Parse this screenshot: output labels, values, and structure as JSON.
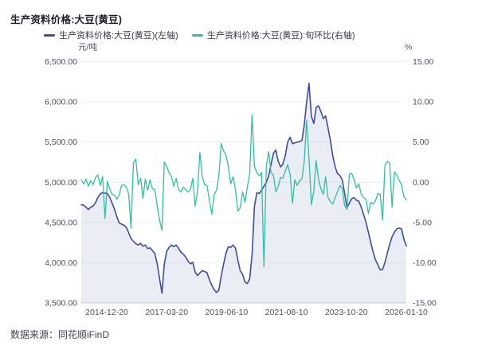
{
  "title": "生产资料价格:大豆(黄豆)",
  "source": "数据来源：同花顺iFinD",
  "legend": [
    {
      "label": "生产资料价格:大豆(黄豆)(左轴)",
      "color": "#3e4d9e"
    },
    {
      "label": "生产资料价格:大豆(黄豆):旬环比(右轴)",
      "color": "#2ec0a6"
    }
  ],
  "colors": {
    "price_line": "#3e4d9e",
    "price_area": "rgba(63,77,158,0.10)",
    "ratio_line": "#2ec0a6",
    "grid": "#eef0f4",
    "axis": "#c9ccd6",
    "tick_text": "#4a5064"
  },
  "left_axis": {
    "unit": "元/吨",
    "labels": [
      "6,500.00",
      "6,000.00",
      "5,500.00",
      "5,000.00",
      "4,500.00",
      "4,000.00",
      "3,500.00"
    ],
    "min": 3500,
    "max": 6500
  },
  "right_axis": {
    "unit": "%",
    "labels": [
      "15.00",
      "10.00",
      "5.00",
      "0.00",
      "-5.00",
      "-10.00",
      "-15.00"
    ],
    "min": -15,
    "max": 15
  },
  "x_axis": {
    "ticks": [
      "2014-12-20",
      "2017-03-20",
      "2019-06-10",
      "2021-08-10",
      "2023-10-20",
      "2026-01-10"
    ]
  },
  "chart_data": {
    "type": "line",
    "title": "生产资料价格:大豆(黄豆)",
    "legend_position": "top",
    "grid": true,
    "left_ylim": [
      3500,
      6500
    ],
    "right_ylim": [
      -15,
      15
    ],
    "x": [
      "2013-11-30",
      "2013-12-30",
      "2014-01-30",
      "2014-03-01",
      "2014-04-05",
      "2014-05-10",
      "2014-06-10",
      "2014-07-10",
      "2014-08-10",
      "2014-09-10",
      "2014-10-20",
      "2014-11-20",
      "2014-12-20",
      "2015-01-20",
      "2015-02-20",
      "2015-03-30",
      "2015-04-30",
      "2015-05-30",
      "2015-07-01",
      "2015-08-01",
      "2015-09-10",
      "2015-10-10",
      "2015-11-10",
      "2015-12-10",
      "2016-01-10",
      "2016-02-10",
      "2016-03-20",
      "2016-04-20",
      "2016-05-20",
      "2016-06-20",
      "2016-07-20",
      "2016-08-30",
      "2016-09-30",
      "2016-10-30",
      "2016-12-01",
      "2017-01-01",
      "2017-02-01",
      "2017-03-10",
      "2017-04-10",
      "2017-05-10",
      "2017-06-10",
      "2017-07-20",
      "2017-08-20",
      "2017-09-20",
      "2017-10-20",
      "2017-11-20",
      "2017-12-30",
      "2018-01-30",
      "2018-03-01",
      "2018-04-01",
      "2018-05-10",
      "2018-06-10",
      "2018-07-10",
      "2018-08-10",
      "2018-09-10",
      "2018-10-20",
      "2018-11-20",
      "2018-12-20",
      "2019-01-20",
      "2019-02-20",
      "2019-03-30",
      "2019-04-30",
      "2019-06-01",
      "2019-07-01",
      "2019-08-01",
      "2019-09-01",
      "2019-10-01",
      "2019-11-10",
      "2019-12-10",
      "2020-01-10",
      "2020-02-10",
      "2020-03-10",
      "2020-04-10",
      "2020-05-10",
      "2020-06-10",
      "2020-07-20",
      "2020-08-20",
      "2020-09-20",
      "2020-10-20",
      "2020-11-20",
      "2020-12-20",
      "2021-01-20",
      "2021-02-20",
      "2021-03-30",
      "2021-04-30",
      "2021-06-01",
      "2021-07-01",
      "2021-08-01",
      "2021-09-01",
      "2021-10-01",
      "2021-11-01",
      "2021-12-10",
      "2022-01-10",
      "2022-02-10",
      "2022-03-10",
      "2022-04-10",
      "2022-05-10",
      "2022-06-20",
      "2022-07-20",
      "2022-08-20",
      "2022-09-20",
      "2022-10-20",
      "2022-11-20",
      "2022-12-20",
      "2023-01-30",
      "2023-03-01",
      "2023-04-01",
      "2023-05-01",
      "2023-06-01",
      "2023-07-10",
      "2023-08-10",
      "2023-09-10",
      "2023-10-10",
      "2023-11-10",
      "2023-12-10",
      "2024-01-10",
      "2024-02-20",
      "2024-03-20",
      "2024-04-20",
      "2024-05-20",
      "2024-06-20",
      "2024-07-30",
      "2024-08-30",
      "2024-10-01",
      "2024-11-01",
      "2024-12-01",
      "2025-01-10",
      "2025-02-10",
      "2025-03-10",
      "2025-04-10",
      "2025-05-20",
      "2025-06-20",
      "2025-07-20",
      "2025-08-20",
      "2025-09-20",
      "2025-10-30",
      "2025-11-30",
      "2026-01-01"
    ],
    "series": [
      {
        "name": "生产资料价格:大豆(黄豆)(左轴)",
        "axis": "left",
        "unit": "元/吨",
        "color": "#3e4d9e",
        "area_fill": true,
        "values": [
          4720,
          4715,
          4690,
          4660,
          4690,
          4705,
          4745,
          4810,
          4855,
          4870,
          4865,
          4860,
          4815,
          4740,
          4665,
          4570,
          4495,
          4480,
          4465,
          4440,
          4370,
          4300,
          4265,
          4235,
          4220,
          4240,
          4205,
          4220,
          4175,
          4185,
          4150,
          4115,
          3990,
          3800,
          3620,
          3980,
          4140,
          4190,
          4220,
          4200,
          4220,
          4180,
          4130,
          4105,
          4070,
          4020,
          3985,
          4005,
          3885,
          3840,
          3875,
          3900,
          3890,
          3875,
          3790,
          3720,
          3665,
          3630,
          3660,
          3835,
          3985,
          4120,
          4200,
          4190,
          4220,
          4180,
          4030,
          3900,
          3855,
          3760,
          3740,
          3800,
          4100,
          4700,
          4870,
          4860,
          4900,
          4950,
          5000,
          5080,
          5220,
          5360,
          5400,
          5260,
          5190,
          5230,
          5330,
          5500,
          5560,
          5480,
          5490,
          5500,
          5505,
          5520,
          5710,
          6000,
          6230,
          5820,
          5730,
          5930,
          5950,
          5880,
          5790,
          5825,
          5680,
          5520,
          5330,
          5190,
          5110,
          5085,
          5030,
          4860,
          4685,
          4740,
          4795,
          4810,
          4775,
          4765,
          4690,
          4600,
          4500,
          4380,
          4255,
          4135,
          4035,
          3975,
          3910,
          3915,
          4005,
          4120,
          4230,
          4320,
          4380,
          4420,
          4430,
          4420,
          4290,
          4210
        ]
      },
      {
        "name": "生产资料价格:大豆(黄豆):旬环比(右轴)",
        "axis": "right",
        "unit": "%",
        "color": "#2ec0a6",
        "area_fill": false,
        "values": [
          0.3,
          -0.2,
          0.4,
          -0.5,
          0.2,
          -0.3,
          0.6,
          0.9,
          -0.4,
          0.7,
          -4.5,
          0.1,
          -0.8,
          -1.5,
          -1.6,
          -2.1,
          -1.6,
          -0.4,
          -0.3,
          -0.6,
          -1.5,
          -5.7,
          2.4,
          2.9,
          -0.3,
          0.5,
          -2.0,
          0.4,
          -1.0,
          0.3,
          -0.8,
          -0.9,
          -2.9,
          -4.7,
          -6.0,
          2.5,
          2.0,
          1.2,
          0.7,
          -0.5,
          0.5,
          -0.9,
          -1.2,
          -0.6,
          -0.9,
          -1.2,
          -0.9,
          0.5,
          -3.0,
          -1.1,
          3.7,
          0.7,
          -0.3,
          -0.4,
          -2.2,
          -4.0,
          -1.5,
          -1.0,
          0.8,
          4.8,
          3.9,
          3.4,
          1.9,
          -0.2,
          0.7,
          -1.0,
          -3.6,
          -3.2,
          -1.2,
          -2.5,
          -0.6,
          1.0,
          8.4,
          2.0,
          1.2,
          0.8,
          1.2,
          -10.5,
          2.0,
          3.8,
          1.2,
          0.9,
          -1.2,
          -0.5,
          0.6,
          0.5,
          1.4,
          2.2,
          1.0,
          -2.6,
          0.3,
          -0.4,
          0.2,
          0.4,
          2.6,
          7.7,
          2.9,
          -2.8,
          -1.1,
          2.7,
          0.4,
          -0.8,
          -1.5,
          0.7,
          -1.9,
          -2.4,
          -2.7,
          -1.9,
          -1.2,
          -0.4,
          -0.8,
          -2.9,
          -3.4,
          1.0,
          1.1,
          0.3,
          -0.7,
          -0.2,
          -1.5,
          -1.9,
          -2.1,
          -3.9,
          -2.5,
          -2.7,
          -2.3,
          -1.4,
          -1.5,
          -4.7,
          2.1,
          2.6,
          2.4,
          -3.1,
          1.3,
          0.9,
          0.2,
          -0.3,
          -1.8,
          -2.2
        ]
      }
    ]
  }
}
